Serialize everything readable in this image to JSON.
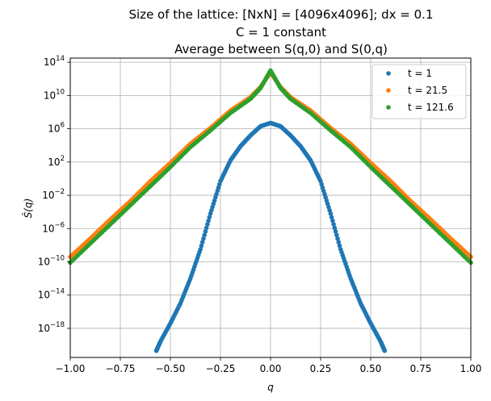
{
  "chart_data": {
    "type": "scatter",
    "title_lines": [
      "Size of the lattice: [NxN] = [4096x4096]; dx = 0.1",
      "C = 1 constant",
      "Average between S(q,0) and S(0,q)"
    ],
    "xlabel": "q",
    "ylabel": "Ŝ(q)",
    "xlim": [
      -1.0,
      1.0
    ],
    "ylim_log10": [
      -21.5,
      14.5
    ],
    "y_scale": "log",
    "grid": true,
    "legend_position": "upper right",
    "x_ticks": [
      "−1.00",
      "−0.75",
      "−0.50",
      "−0.25",
      "0.00",
      "0.25",
      "0.50",
      "0.75",
      "1.00"
    ],
    "x_tick_values": [
      -1.0,
      -0.75,
      -0.5,
      -0.25,
      0.0,
      0.25,
      0.5,
      0.75,
      1.0
    ],
    "y_tick_exponents": [
      14,
      10,
      6,
      2,
      -2,
      -6,
      -10,
      -14,
      -18
    ],
    "series": [
      {
        "name": "t = 1",
        "color": "#1f77b4",
        "points": [
          [
            -0.57,
            -20.7
          ],
          [
            -0.55,
            -19.6
          ],
          [
            -0.5,
            -17.4
          ],
          [
            -0.45,
            -15.0
          ],
          [
            -0.4,
            -12.0
          ],
          [
            -0.35,
            -8.5
          ],
          [
            -0.3,
            -4.2
          ],
          [
            -0.25,
            -0.3
          ],
          [
            -0.2,
            2.2
          ],
          [
            -0.15,
            3.9
          ],
          [
            -0.1,
            5.2
          ],
          [
            -0.05,
            6.3
          ],
          [
            0.0,
            6.7
          ],
          [
            0.05,
            6.3
          ],
          [
            0.1,
            5.2
          ],
          [
            0.15,
            3.9
          ],
          [
            0.2,
            2.2
          ],
          [
            0.25,
            -0.3
          ],
          [
            0.3,
            -4.2
          ],
          [
            0.35,
            -8.5
          ],
          [
            0.4,
            -12.0
          ],
          [
            0.45,
            -15.0
          ],
          [
            0.5,
            -17.4
          ],
          [
            0.55,
            -19.6
          ],
          [
            0.57,
            -20.7
          ]
        ]
      },
      {
        "name": "t = 21.5",
        "color": "#ff7f0e",
        "points": [
          [
            -1.0,
            -9.4
          ],
          [
            -0.9,
            -7.2
          ],
          [
            -0.8,
            -4.9
          ],
          [
            -0.7,
            -2.7
          ],
          [
            -0.6,
            -0.3
          ],
          [
            -0.5,
            1.9
          ],
          [
            -0.4,
            4.2
          ],
          [
            -0.3,
            6.1
          ],
          [
            -0.2,
            8.2
          ],
          [
            -0.1,
            9.8
          ],
          [
            -0.05,
            11.0
          ],
          [
            0.0,
            12.8
          ],
          [
            0.05,
            11.0
          ],
          [
            0.1,
            9.8
          ],
          [
            0.2,
            8.2
          ],
          [
            0.3,
            6.1
          ],
          [
            0.4,
            4.2
          ],
          [
            0.5,
            1.9
          ],
          [
            0.6,
            -0.3
          ],
          [
            0.7,
            -2.7
          ],
          [
            0.8,
            -4.9
          ],
          [
            0.9,
            -7.2
          ],
          [
            1.0,
            -9.4
          ]
        ]
      },
      {
        "name": "t = 121.6",
        "color": "#2ca02c",
        "points": [
          [
            -1.0,
            -10.1
          ],
          [
            -0.9,
            -7.8
          ],
          [
            -0.8,
            -5.5
          ],
          [
            -0.7,
            -3.2
          ],
          [
            -0.6,
            -0.9
          ],
          [
            -0.5,
            1.4
          ],
          [
            -0.4,
            3.8
          ],
          [
            -0.3,
            5.8
          ],
          [
            -0.2,
            7.9
          ],
          [
            -0.1,
            9.6
          ],
          [
            -0.05,
            10.9
          ],
          [
            0.0,
            13.0
          ],
          [
            0.05,
            10.9
          ],
          [
            0.1,
            9.6
          ],
          [
            0.2,
            7.9
          ],
          [
            0.3,
            5.8
          ],
          [
            0.4,
            3.8
          ],
          [
            0.5,
            1.4
          ],
          [
            0.6,
            -0.9
          ],
          [
            0.7,
            -3.2
          ],
          [
            0.8,
            -5.5
          ],
          [
            0.9,
            -7.8
          ],
          [
            1.0,
            -10.1
          ]
        ]
      }
    ]
  }
}
